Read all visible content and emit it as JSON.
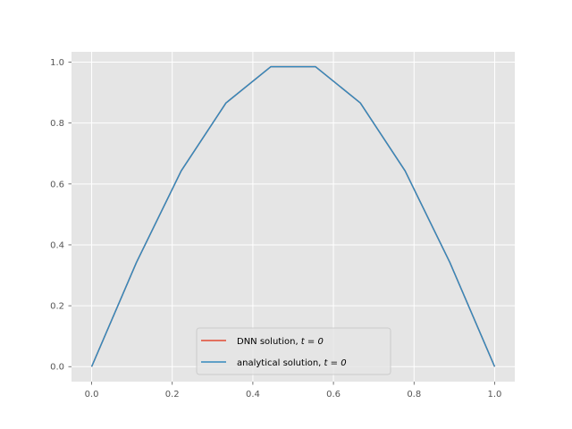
{
  "chart_data": {
    "type": "line",
    "title": "",
    "xlabel": "",
    "ylabel": "",
    "xlim": [
      -0.05,
      1.05
    ],
    "ylim": [
      -0.0492,
      1.0339
    ],
    "grid": true,
    "legend_position": "lower-center",
    "x_ticks": [
      "0.0",
      "0.2",
      "0.4",
      "0.6",
      "0.8",
      "1.0"
    ],
    "y_ticks": [
      "0.0",
      "0.2",
      "0.4",
      "0.6",
      "0.8",
      "1.0"
    ],
    "x": [
      0.0,
      0.1111,
      0.2222,
      0.3333,
      0.4444,
      0.5556,
      0.6667,
      0.7778,
      0.8889,
      1.0
    ],
    "series": [
      {
        "name": "DNN solution, t = 0",
        "label_prefix": "DNN solution, ",
        "label_math": "t = 0",
        "color": "#E24A33",
        "values": [
          0.0,
          0.342,
          0.643,
          0.866,
          0.985,
          0.985,
          0.866,
          0.643,
          0.342,
          0.0
        ]
      },
      {
        "name": "analytical solution, t = 0",
        "label_prefix": "analytical solution, ",
        "label_math": "t = 0",
        "color": "#348ABD",
        "values": [
          0.0,
          0.342,
          0.643,
          0.866,
          0.985,
          0.985,
          0.866,
          0.643,
          0.342,
          0.0
        ]
      }
    ],
    "colors": {
      "plot_background": "#E5E5E5",
      "grid": "#FFFFFF",
      "tick_label": "#555555",
      "legend_background": "#E5E5E5",
      "legend_border": "#CCCCCC"
    }
  }
}
